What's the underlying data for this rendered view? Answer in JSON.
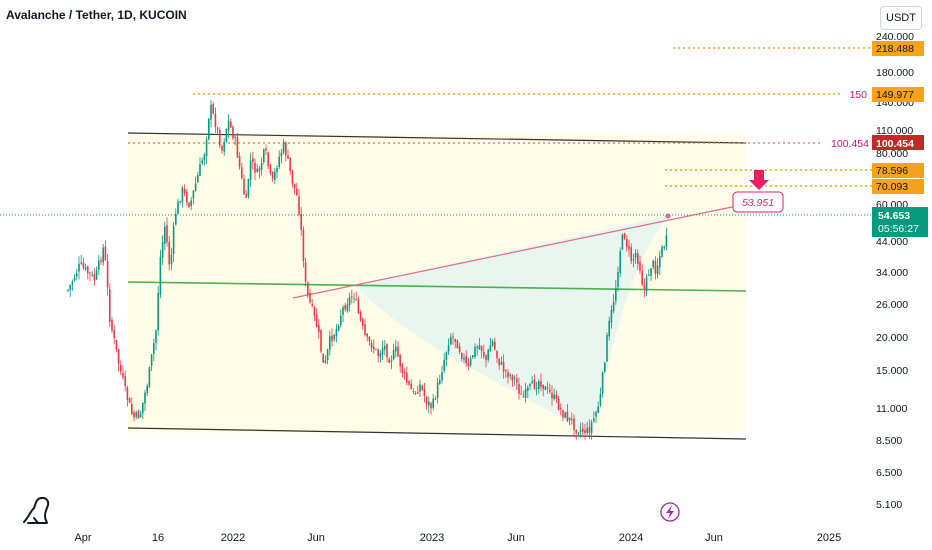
{
  "header": {
    "title": "Avalanche / Tether, 1D, KUCOIN",
    "currency": "USDT"
  },
  "chart_data": {
    "type": "candlestick",
    "y_scale": "log",
    "y_ticks": [
      "240.000",
      "180.000",
      "140.000",
      "110.000",
      "80.000",
      "60.000",
      "44.000",
      "34.000",
      "26.000",
      "20.000",
      "15.000",
      "11.000",
      "8.500",
      "6.500",
      "5.100"
    ],
    "x_ticks": [
      "Apr",
      "16",
      "2022",
      "Jun",
      "2023",
      "Jun",
      "2024",
      "Jun",
      "2025"
    ],
    "price_levels": [
      {
        "value": "218.488",
        "color": "#f7a21b",
        "style": "dotted",
        "prefix": ""
      },
      {
        "value": "149.977",
        "color": "#f7a21b",
        "style": "dotted",
        "prefix": "150"
      },
      {
        "value": "100.454",
        "color": "#c2185b",
        "style": "dotted",
        "prefix": "100.454"
      },
      {
        "value": "78.596",
        "color": "#f7a21b",
        "style": "dotted",
        "prefix": ""
      },
      {
        "value": "70.093",
        "color": "#f7a21b",
        "style": "dotted",
        "prefix": ""
      }
    ],
    "current_price": {
      "value": "54.653",
      "countdown": "05:56:27",
      "color": "#089981"
    },
    "target_label": "53.951",
    "colors": {
      "up": "#089981",
      "down": "#f23645",
      "zone": "#fffde7",
      "cup": "#e6f5ef",
      "neckline": "#e06c8c",
      "support": "#4caf50",
      "channel": "#333333"
    }
  },
  "icons": {
    "logo": "tradingview-logo-icon",
    "event": "lightning-event-icon"
  }
}
